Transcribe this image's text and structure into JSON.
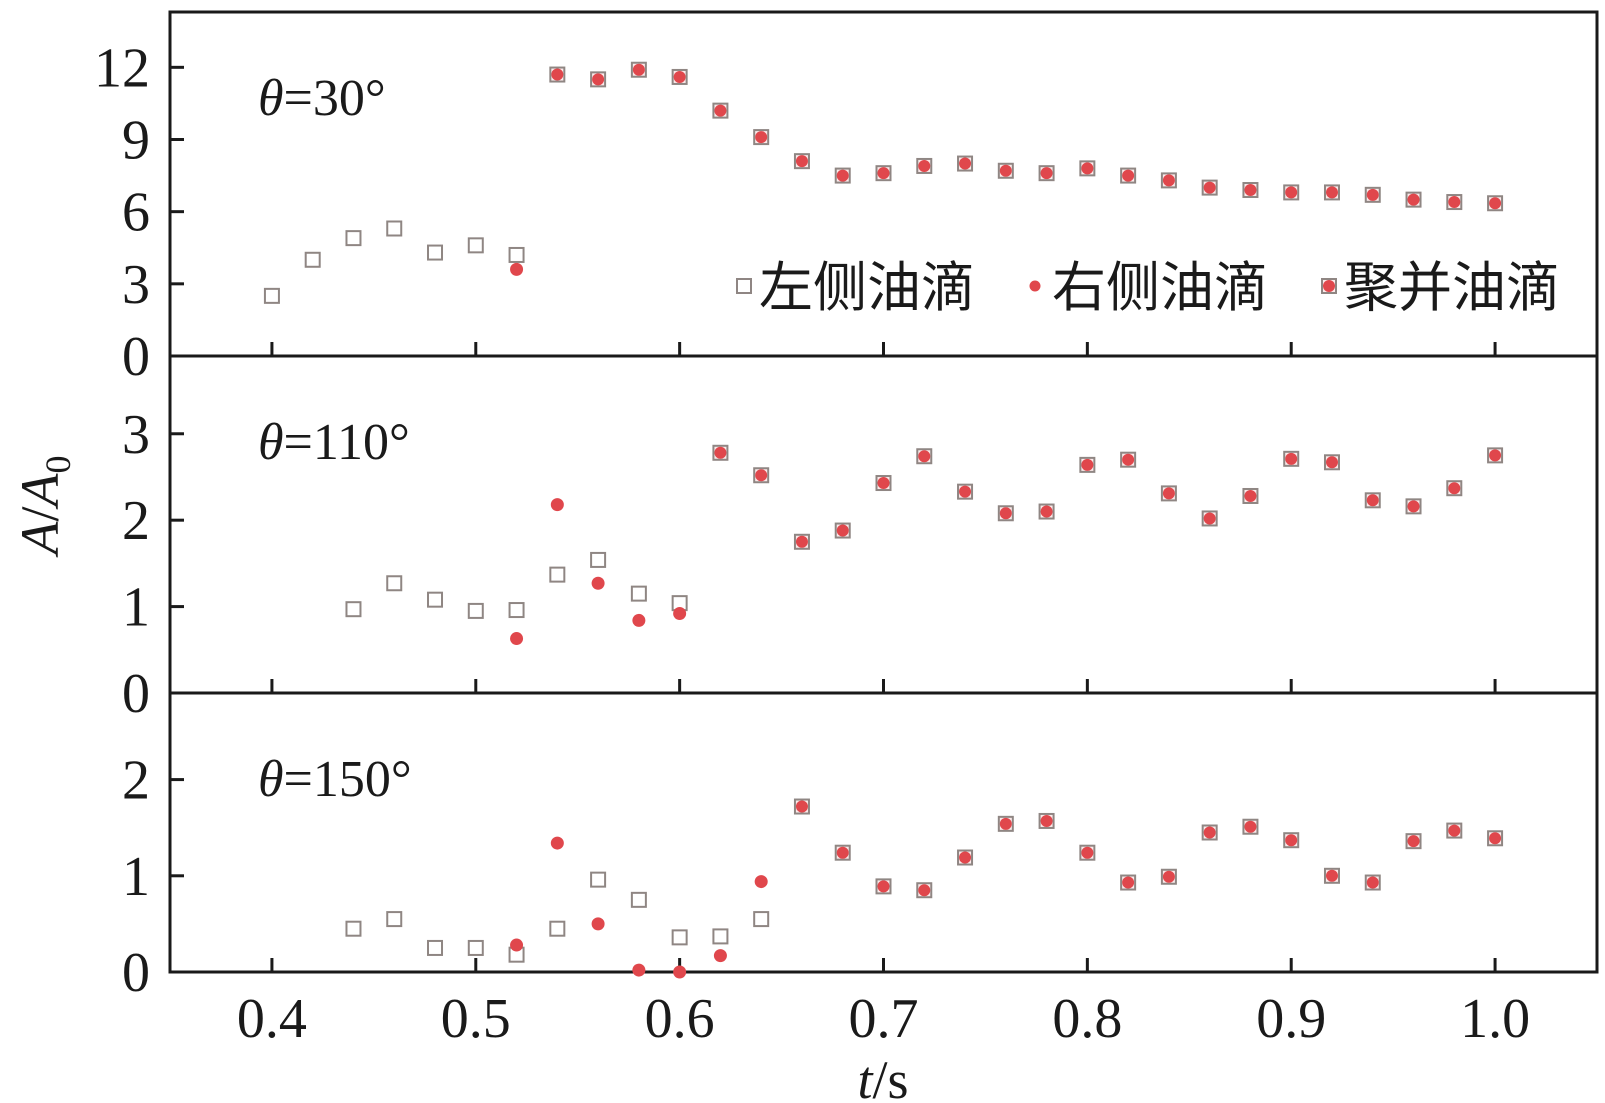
{
  "chart_data": {
    "type": "scatter",
    "xlabel": {
      "var": "t",
      "unit": "/s"
    },
    "ylabel": {
      "var": "A",
      "sep": "/",
      "var2": "A",
      "sub": "0"
    },
    "xlim": [
      0.35,
      1.05
    ],
    "xticks": [
      0.4,
      0.5,
      0.6,
      0.7,
      0.8,
      0.9,
      1.0
    ],
    "x_tick_labels": [
      "0.4",
      "0.5",
      "0.6",
      "0.7",
      "0.8",
      "0.9",
      "1.0"
    ],
    "legend": {
      "placement": "inside top panel, lower-right",
      "items": [
        {
          "series": "left",
          "label": "左侧油滴",
          "marker": "open-square"
        },
        {
          "series": "right",
          "label": "右侧油滴",
          "marker": "filled-circle"
        },
        {
          "series": "merged",
          "label": "聚并油滴",
          "marker": "filled-circle-in-square"
        }
      ]
    },
    "colors": {
      "left": "#8f8683",
      "right": "#e0474c",
      "merged_square": "#8f8683",
      "merged_dot": "#e0474c",
      "axis": "#1a1a1a"
    },
    "panels": [
      {
        "label_theta": "θ",
        "label_rest": "=30°",
        "ylim": [
          0,
          14.3
        ],
        "yticks": [
          0,
          3,
          6,
          9,
          12
        ],
        "y_tick_labels": [
          "0",
          "3",
          "6",
          "9",
          "12"
        ],
        "series": {
          "left": {
            "x": [
              0.4,
              0.42,
              0.44,
              0.46,
              0.48,
              0.5,
              0.52
            ],
            "y": [
              2.5,
              4.0,
              4.9,
              5.3,
              4.3,
              4.6,
              4.2
            ]
          },
          "right": {
            "x": [
              0.52
            ],
            "y": [
              3.6
            ]
          },
          "merged": {
            "x": [
              0.54,
              0.56,
              0.58,
              0.6,
              0.62,
              0.64,
              0.66,
              0.68,
              0.7,
              0.72,
              0.74,
              0.76,
              0.78,
              0.8,
              0.82,
              0.84,
              0.86,
              0.88,
              0.9,
              0.92,
              0.94,
              0.96,
              0.98,
              1.0
            ],
            "y": [
              11.7,
              11.5,
              11.9,
              11.6,
              10.2,
              9.1,
              8.1,
              7.5,
              7.6,
              7.9,
              8.0,
              7.7,
              7.6,
              7.8,
              7.5,
              7.3,
              7.0,
              6.9,
              6.8,
              6.8,
              6.7,
              6.5,
              6.4,
              6.35
            ]
          }
        }
      },
      {
        "label_theta": "θ",
        "label_rest": "=110°",
        "ylim": [
          0,
          3.9
        ],
        "yticks": [
          0,
          1,
          2,
          3
        ],
        "y_tick_labels": [
          "0",
          "1",
          "2",
          "3"
        ],
        "series": {
          "left": {
            "x": [
              0.44,
              0.46,
              0.48,
              0.5,
              0.52,
              0.54,
              0.56,
              0.58,
              0.6
            ],
            "y": [
              0.97,
              1.27,
              1.08,
              0.95,
              0.96,
              1.37,
              1.54,
              1.15,
              1.04
            ]
          },
          "right": {
            "x": [
              0.52,
              0.54,
              0.56,
              0.58,
              0.6
            ],
            "y": [
              0.63,
              2.18,
              1.27,
              0.84,
              0.92
            ]
          },
          "merged": {
            "x": [
              0.62,
              0.64,
              0.66,
              0.68,
              0.7,
              0.72,
              0.74,
              0.76,
              0.78,
              0.8,
              0.82,
              0.84,
              0.86,
              0.88,
              0.9,
              0.92,
              0.94,
              0.96,
              0.98,
              1.0
            ],
            "y": [
              2.78,
              2.52,
              1.75,
              1.88,
              2.43,
              2.74,
              2.33,
              2.08,
              2.1,
              2.64,
              2.7,
              2.31,
              2.02,
              2.28,
              2.71,
              2.67,
              2.23,
              2.16,
              2.37,
              2.75
            ]
          }
        }
      },
      {
        "label_theta": "θ",
        "label_rest": "=150°",
        "ylim": [
          0,
          2.9
        ],
        "yticks": [
          0,
          1,
          2
        ],
        "y_tick_labels": [
          "0",
          "1",
          "2"
        ],
        "series": {
          "left": {
            "x": [
              0.44,
              0.46,
              0.48,
              0.5,
              0.52,
              0.54,
              0.56,
              0.58,
              0.6,
              0.62,
              0.64
            ],
            "y": [
              0.45,
              0.55,
              0.25,
              0.25,
              0.18,
              0.45,
              0.96,
              0.75,
              0.36,
              0.37,
              0.55
            ]
          },
          "right": {
            "x": [
              0.52,
              0.54,
              0.56,
              0.58,
              0.6,
              0.62,
              0.64
            ],
            "y": [
              0.28,
              1.34,
              0.5,
              0.02,
              0.0,
              0.17,
              0.94
            ]
          },
          "merged": {
            "x": [
              0.66,
              0.68,
              0.7,
              0.72,
              0.74,
              0.76,
              0.78,
              0.8,
              0.82,
              0.84,
              0.86,
              0.88,
              0.9,
              0.92,
              0.94,
              0.96,
              0.98,
              1.0
            ],
            "y": [
              1.72,
              1.24,
              0.89,
              0.85,
              1.19,
              1.54,
              1.57,
              1.24,
              0.93,
              0.99,
              1.45,
              1.51,
              1.37,
              1.0,
              0.93,
              1.36,
              1.47,
              1.39
            ]
          }
        }
      }
    ]
  }
}
